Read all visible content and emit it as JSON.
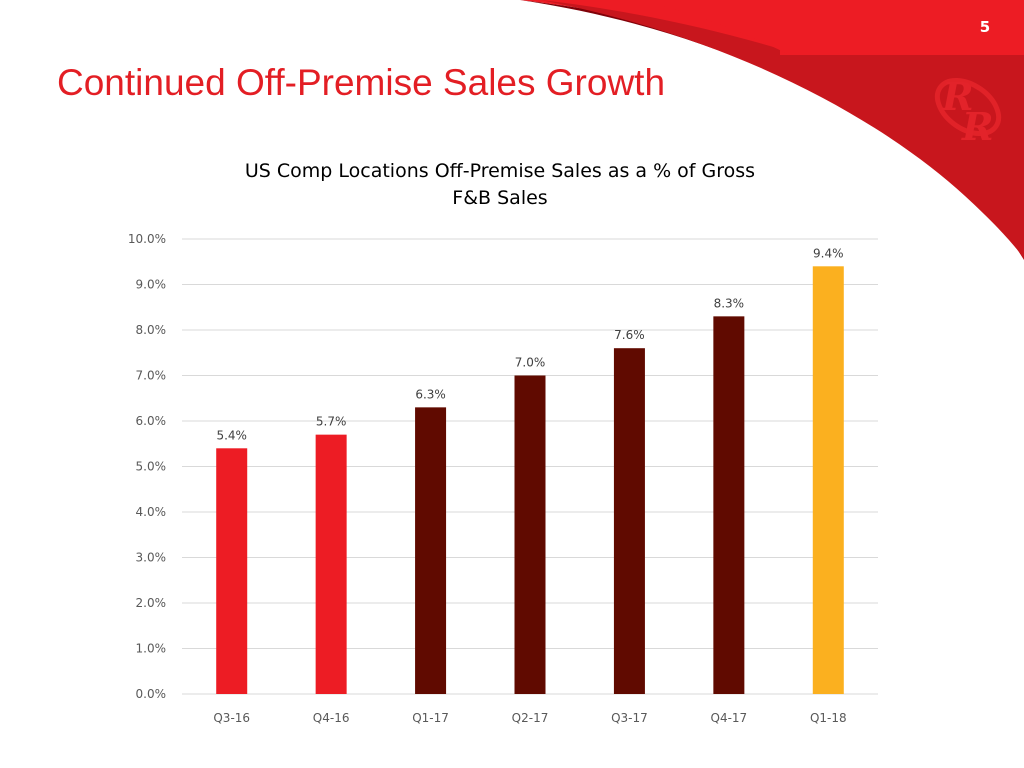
{
  "slide": {
    "title": "Continued Off-Premise Sales Growth",
    "page_number": "5",
    "logo_icon": "rr-monogram-logo",
    "colors": {
      "brand_red": "#e31e24",
      "dark_red": "#c8161d",
      "title_red": "#e31e24"
    }
  },
  "chart_data": {
    "type": "bar",
    "title_lines": [
      "US Comp Locations Off-Premise Sales as a % of Gross",
      "F&B Sales"
    ],
    "title": "US Comp Locations Off-Premise Sales as a % of Gross F&B Sales",
    "xlabel": "",
    "ylabel": "",
    "categories": [
      "Q3-16",
      "Q4-16",
      "Q1-17",
      "Q2-17",
      "Q3-17",
      "Q4-17",
      "Q1-18"
    ],
    "values": [
      5.4,
      5.7,
      6.3,
      7.0,
      7.6,
      8.3,
      9.4
    ],
    "data_labels": [
      "5.4%",
      "5.7%",
      "6.3%",
      "7.0%",
      "7.6%",
      "8.3%",
      "9.4%"
    ],
    "bar_colors": [
      "#ed1c24",
      "#ed1c24",
      "#600a00",
      "#600a00",
      "#600a00",
      "#600a00",
      "#fbb01f"
    ],
    "ylim": [
      0,
      10
    ],
    "yticks": [
      0,
      1,
      2,
      3,
      4,
      5,
      6,
      7,
      8,
      9,
      10
    ],
    "ytick_labels": [
      "0.0%",
      "1.0%",
      "2.0%",
      "3.0%",
      "4.0%",
      "5.0%",
      "6.0%",
      "7.0%",
      "8.0%",
      "9.0%",
      "10.0%"
    ],
    "grid": true,
    "legend": "none"
  }
}
